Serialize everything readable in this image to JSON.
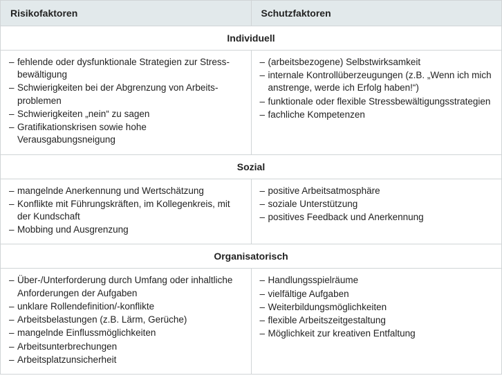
{
  "colors": {
    "header_bg": "#e2e9eb",
    "border": "#d0d4d6",
    "text": "#222222",
    "bg": "#ffffff"
  },
  "typography": {
    "font_family": "Arial, Helvetica, sans-serif",
    "header_fontsize": 14,
    "body_fontsize": 13.5,
    "header_weight": "bold",
    "section_weight": "bold"
  },
  "headers": {
    "left": "Risikofaktoren",
    "right": "Schutzfaktoren"
  },
  "sections": [
    {
      "title": "Individuell",
      "left": [
        "fehlende oder dysfunktionale Strategien zur Stress­bewältigung",
        "Schwierigkeiten bei der Abgrenzung von Arbeits­problemen",
        "Schwierigkeiten „nein“ zu sagen",
        "Gratifikationskrisen sowie hohe Verausgabungsneigung"
      ],
      "left_wrap": [
        true,
        true,
        false,
        false
      ],
      "right": [
        "(arbeitsbezogene) Selbstwirksamkeit",
        "internale Kontrollüberzeugungen (z.B. „Wenn ich mich anstrenge, werde ich Erfolg haben!“)",
        "funktionale oder flexible Stressbewältigungsstrategien",
        "fachliche Kompetenzen"
      ],
      "right_wrap": [
        false,
        true,
        false,
        false
      ]
    },
    {
      "title": "Sozial",
      "left": [
        "mangelnde Anerkennung und Wertschätzung",
        "Konflikte mit Führungskräften, im Kollegenkreis, mit der Kundschaft",
        "Mobbing und Ausgrenzung"
      ],
      "left_wrap": [
        false,
        true,
        false
      ],
      "right": [
        "positive Arbeitsatmosphäre",
        "soziale Unterstützung",
        "positives Feedback und Anerkennung"
      ],
      "right_wrap": [
        false,
        false,
        false
      ]
    },
    {
      "title": "Organisatorisch",
      "left": [
        "Über-/Unterforderung durch Umfang oder inhaltliche Anforderungen der Aufgaben",
        "unklare Rollendefinition/-konflikte",
        "Arbeitsbelastungen (z.B. Lärm, Gerüche)",
        "mangelnde Einflussmöglichkeiten",
        "Arbeitsunterbrechungen",
        "Arbeitsplatzunsicherheit"
      ],
      "left_wrap": [
        true,
        false,
        false,
        false,
        false,
        false
      ],
      "right": [
        "Handlungsspielräume",
        "vielfältige Aufgaben",
        "Weiterbildungsmöglichkeiten",
        "flexible Arbeitszeitgestaltung",
        "Möglichkeit zur kreativen Entfaltung"
      ],
      "right_wrap": [
        false,
        false,
        false,
        false,
        false
      ]
    }
  ]
}
